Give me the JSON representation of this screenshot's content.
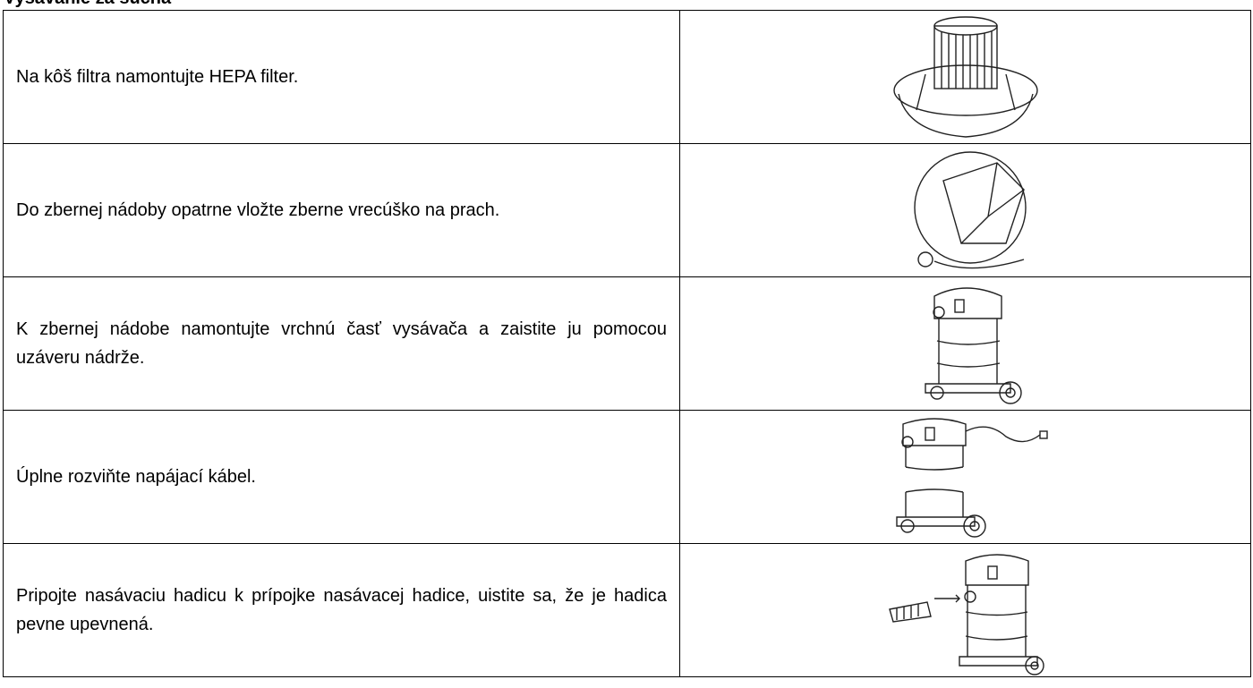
{
  "heading": "Vysávanie za sucha",
  "table": {
    "rows": [
      [
        "Na kôš filtra namontujte HEPA filter."
      ],
      [
        "Do zbernej nádoby opatrne vložte zberne vrecúško na prach."
      ],
      [
        "K zbernej nádobe namontujte vrchnú časť vysávača a zaistite ju pomocou uzáveru nádrže."
      ],
      [
        "Úplne rozviňte napájací kábel."
      ],
      [
        "Pripojte nasávaciu hadicu k prípojke nasávacej hadice, uistite sa, že je hadica pevne upevnená."
      ]
    ]
  }
}
